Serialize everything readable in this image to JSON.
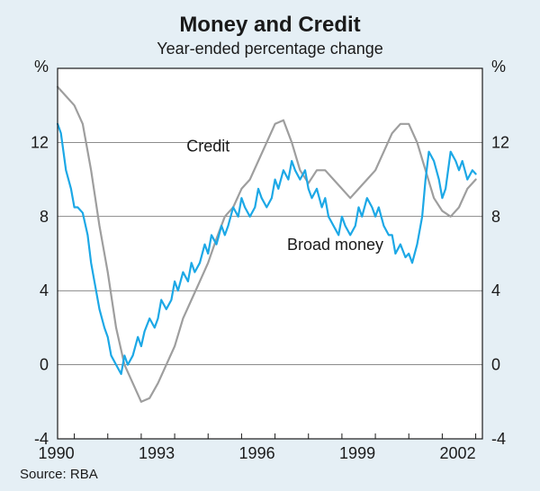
{
  "chart": {
    "type": "line",
    "title": "Money and Credit",
    "subtitle": "Year-ended percentage change",
    "title_fontsize": 24,
    "subtitle_fontsize": 18,
    "background_color": "#e5eff5",
    "plot_background": "#ffffff",
    "border_color": "#1a1a1a",
    "grid_color": "#1a1a1a",
    "y_axis": {
      "unit_label": "%",
      "min": -4,
      "max": 16,
      "ticks": [
        -4,
        0,
        4,
        8,
        12
      ],
      "tick_labels": [
        "-4",
        "0",
        "4",
        "8",
        "12"
      ],
      "label_fontsize": 18
    },
    "x_axis": {
      "min": 1989.5,
      "max": 2002.2,
      "ticks": [
        1990,
        1993,
        1996,
        1999,
        2002
      ],
      "tick_labels": [
        "1990",
        "1993",
        "1996",
        "1999",
        "2002"
      ],
      "minor_tick_step": 1,
      "label_fontsize": 18
    },
    "series": [
      {
        "name": "Credit",
        "label": "Credit",
        "label_pos": {
          "x": 1994.0,
          "y": 11.5
        },
        "color": "#9e9e9e",
        "line_width": 2.2,
        "x": [
          1989.5,
          1989.75,
          1990,
          1990.25,
          1990.5,
          1990.75,
          1991,
          1991.25,
          1991.5,
          1991.75,
          1992,
          1992.25,
          1992.5,
          1992.75,
          1993,
          1993.25,
          1993.5,
          1993.75,
          1994,
          1994.25,
          1994.5,
          1994.75,
          1995,
          1995.25,
          1995.5,
          1995.75,
          1996,
          1996.25,
          1996.5,
          1996.75,
          1997,
          1997.25,
          1997.5,
          1997.75,
          1998,
          1998.25,
          1998.5,
          1998.75,
          1999,
          1999.25,
          1999.5,
          1999.75,
          2000,
          2000.25,
          2000.5,
          2000.75,
          2001,
          2001.25,
          2001.5,
          2001.75,
          2002
        ],
        "y": [
          15.0,
          14.5,
          14.0,
          13.0,
          10.5,
          7.5,
          5.0,
          2.0,
          0.0,
          -1.0,
          -2.0,
          -1.8,
          -1.0,
          0.0,
          1.0,
          2.5,
          3.5,
          4.5,
          5.5,
          6.8,
          8.0,
          8.5,
          9.5,
          10.0,
          11.0,
          12.0,
          13.0,
          13.2,
          12.0,
          10.5,
          9.8,
          10.5,
          10.5,
          10.0,
          9.5,
          9.0,
          9.5,
          10.0,
          10.5,
          11.5,
          12.5,
          13.0,
          13.0,
          12.0,
          10.5,
          9.0,
          8.3,
          8.0,
          8.5,
          9.5,
          10.0
        ]
      },
      {
        "name": "Broad money",
        "label": "Broad money",
        "label_pos": {
          "x": 1997.8,
          "y": 6.2
        },
        "color": "#1ca8e6",
        "line_width": 2.2,
        "x": [
          1989.5,
          1989.6,
          1989.75,
          1989.9,
          1990,
          1990.1,
          1990.25,
          1990.4,
          1990.5,
          1990.6,
          1990.75,
          1990.9,
          1991,
          1991.1,
          1991.25,
          1991.4,
          1991.5,
          1991.6,
          1991.75,
          1991.9,
          1992,
          1992.1,
          1992.25,
          1992.4,
          1992.5,
          1992.6,
          1992.75,
          1992.9,
          1993,
          1993.1,
          1993.25,
          1993.4,
          1993.5,
          1993.6,
          1993.75,
          1993.9,
          1994,
          1994.1,
          1994.25,
          1994.4,
          1994.5,
          1994.6,
          1994.75,
          1994.9,
          1995,
          1995.1,
          1995.25,
          1995.4,
          1995.5,
          1995.6,
          1995.75,
          1995.9,
          1996,
          1996.1,
          1996.25,
          1996.4,
          1996.5,
          1996.6,
          1996.75,
          1996.9,
          1997,
          1997.1,
          1997.25,
          1997.4,
          1997.5,
          1997.6,
          1997.75,
          1997.9,
          1998,
          1998.1,
          1998.25,
          1998.4,
          1998.5,
          1998.6,
          1998.75,
          1998.9,
          1999,
          1999.1,
          1999.25,
          1999.4,
          1999.5,
          1999.6,
          1999.75,
          1999.9,
          2000,
          2000.1,
          2000.25,
          2000.4,
          2000.5,
          2000.6,
          2000.75,
          2000.9,
          2001,
          2001.1,
          2001.25,
          2001.4,
          2001.5,
          2001.6,
          2001.75,
          2001.9,
          2002
        ],
        "y": [
          13.0,
          12.5,
          10.5,
          9.5,
          8.5,
          8.5,
          8.2,
          7.0,
          5.5,
          4.5,
          3.0,
          2.0,
          1.5,
          0.5,
          0.0,
          -0.5,
          0.5,
          0.0,
          0.5,
          1.5,
          1.0,
          1.8,
          2.5,
          2.0,
          2.5,
          3.5,
          3.0,
          3.5,
          4.5,
          4.0,
          5.0,
          4.5,
          5.5,
          5.0,
          5.5,
          6.5,
          6.0,
          7.0,
          6.5,
          7.5,
          7.0,
          7.5,
          8.5,
          8.0,
          9.0,
          8.5,
          8.0,
          8.5,
          9.5,
          9.0,
          8.5,
          9.0,
          10.0,
          9.5,
          10.5,
          10.0,
          11.0,
          10.5,
          10.0,
          10.5,
          9.5,
          9.0,
          9.5,
          8.5,
          9.0,
          8.0,
          7.5,
          7.0,
          8.0,
          7.5,
          7.0,
          7.5,
          8.5,
          8.0,
          9.0,
          8.5,
          8.0,
          8.5,
          7.5,
          7.0,
          7.0,
          6.0,
          6.5,
          5.8,
          6.0,
          5.5,
          6.5,
          8.0,
          10.0,
          11.5,
          11.0,
          10.0,
          9.0,
          9.5,
          11.5,
          11.0,
          10.5,
          11.0,
          10.0,
          10.5,
          10.3
        ]
      }
    ],
    "source": "Source: RBA",
    "source_fontsize": 15
  }
}
